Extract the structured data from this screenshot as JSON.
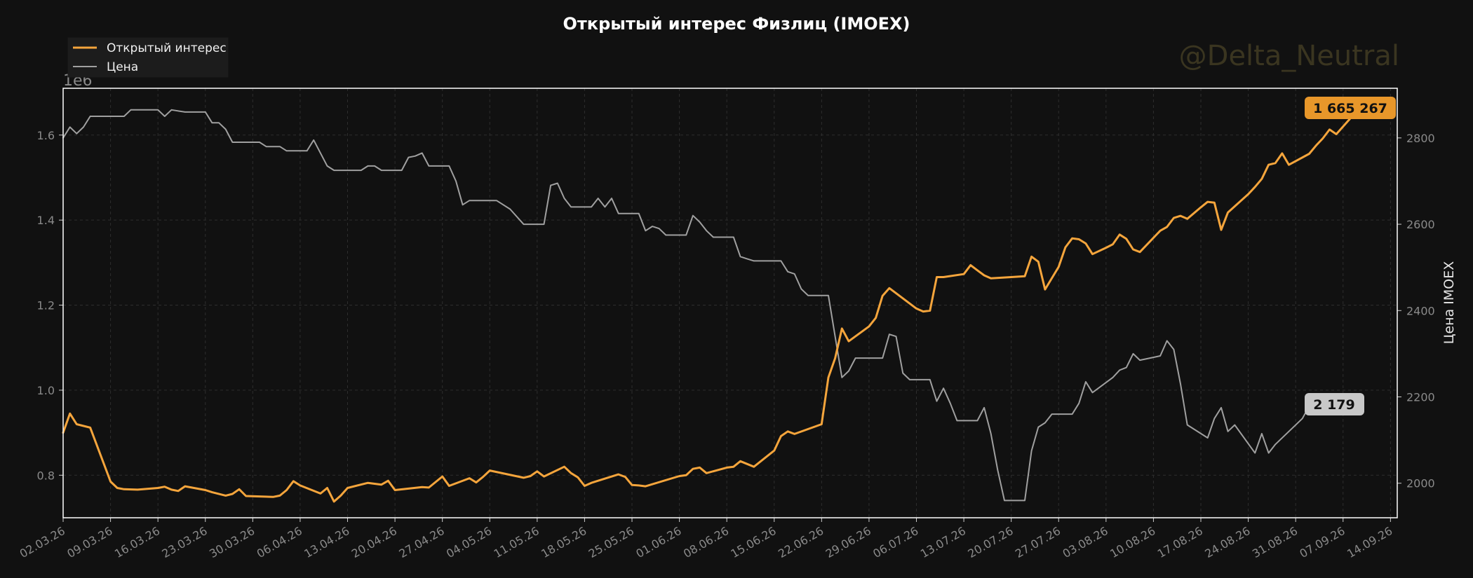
{
  "chart_data": {
    "type": "line",
    "title": "Открытый интерес Физлиц (IMOEX)",
    "left_axis_multiplier": "1e6",
    "ylabel_right": "Цена IMOEX",
    "watermark": "@Delta_Neutral",
    "legend": {
      "placement": "top-left",
      "items": [
        "Открытый интерес",
        "Цена"
      ]
    },
    "x_ticks": [
      "02.03.26",
      "09.03.26",
      "16.03.26",
      "23.03.26",
      "30.03.26",
      "06.04.26",
      "13.04.26",
      "20.04.26",
      "27.04.26",
      "04.05.26",
      "11.05.26",
      "18.05.26",
      "25.05.26",
      "01.06.26",
      "08.06.26",
      "15.06.26",
      "22.06.26",
      "29.06.26",
      "06.07.26",
      "13.07.26",
      "20.07.26",
      "27.07.26",
      "03.08.26",
      "10.08.26",
      "17.08.26",
      "24.08.26",
      "31.08.26",
      "07.09.26",
      "14.09.26"
    ],
    "y_left_ticks": [
      "0.8",
      "1.0",
      "1.2",
      "1.4",
      "1.6"
    ],
    "y_left_range": [
      0.7,
      1.71
    ],
    "y_right_ticks": [
      "2000",
      "2200",
      "2400",
      "2600",
      "2800"
    ],
    "y_right_range": [
      1920,
      2915
    ],
    "x_range_days": [
      0,
      197
    ],
    "grid": true,
    "series": [
      {
        "name": "Открытый интерес",
        "axis": "left",
        "color": "#f5a53c",
        "last_label": "1 665 267",
        "points": [
          [
            "02.03.26",
            0.9
          ],
          [
            "03.03.26",
            0.945
          ],
          [
            "04.03.26",
            0.92
          ],
          [
            "06.03.26",
            0.912
          ],
          [
            "09.03.26",
            0.785
          ],
          [
            "10.03.26",
            0.77
          ],
          [
            "11.03.26",
            0.767
          ],
          [
            "13.03.26",
            0.766
          ],
          [
            "16.03.26",
            0.77
          ],
          [
            "17.03.26",
            0.773
          ],
          [
            "18.03.26",
            0.766
          ],
          [
            "19.03.26",
            0.763
          ],
          [
            "20.03.26",
            0.774
          ],
          [
            "23.03.26",
            0.765
          ],
          [
            "24.03.26",
            0.76
          ],
          [
            "26.03.26",
            0.752
          ],
          [
            "27.03.26",
            0.756
          ],
          [
            "28.03.26",
            0.767
          ],
          [
            "29.03.26",
            0.751
          ],
          [
            "02.04.26",
            0.749
          ],
          [
            "03.04.26",
            0.752
          ],
          [
            "04.04.26",
            0.765
          ],
          [
            "05.04.26",
            0.786
          ],
          [
            "06.04.26",
            0.776
          ],
          [
            "09.04.26",
            0.757
          ],
          [
            "10.04.26",
            0.77
          ],
          [
            "11.04.26",
            0.738
          ],
          [
            "12.04.26",
            0.752
          ],
          [
            "13.04.26",
            0.77
          ],
          [
            "16.04.26",
            0.782
          ],
          [
            "18.04.26",
            0.778
          ],
          [
            "19.04.26",
            0.787
          ],
          [
            "20.04.26",
            0.765
          ],
          [
            "24.04.26",
            0.772
          ],
          [
            "25.04.26",
            0.771
          ],
          [
            "27.04.26",
            0.797
          ],
          [
            "28.04.26",
            0.775
          ],
          [
            "01.05.26",
            0.793
          ],
          [
            "02.05.26",
            0.783
          ],
          [
            "03.05.26",
            0.796
          ],
          [
            "04.05.26",
            0.811
          ],
          [
            "09.05.26",
            0.794
          ],
          [
            "10.05.26",
            0.798
          ],
          [
            "11.05.26",
            0.809
          ],
          [
            "12.05.26",
            0.797
          ],
          [
            "15.05.26",
            0.82
          ],
          [
            "16.05.26",
            0.805
          ],
          [
            "17.05.26",
            0.795
          ],
          [
            "18.05.26",
            0.775
          ],
          [
            "19.05.26",
            0.782
          ],
          [
            "23.05.26",
            0.802
          ],
          [
            "24.05.26",
            0.796
          ],
          [
            "25.05.26",
            0.777
          ],
          [
            "26.05.26",
            0.776
          ],
          [
            "27.05.26",
            0.774
          ],
          [
            "01.06.26",
            0.798
          ],
          [
            "02.06.26",
            0.8
          ],
          [
            "03.06.26",
            0.815
          ],
          [
            "04.06.26",
            0.818
          ],
          [
            "05.06.26",
            0.805
          ],
          [
            "08.06.26",
            0.818
          ],
          [
            "09.06.26",
            0.82
          ],
          [
            "10.06.26",
            0.833
          ],
          [
            "12.06.26",
            0.82
          ],
          [
            "15.06.26",
            0.858
          ],
          [
            "16.06.26",
            0.892
          ],
          [
            "17.06.26",
            0.903
          ],
          [
            "18.06.26",
            0.897
          ],
          [
            "22.06.26",
            0.92
          ],
          [
            "23.06.26",
            1.03
          ],
          [
            "24.06.26",
            1.075
          ],
          [
            "25.06.26",
            1.145
          ],
          [
            "26.06.26",
            1.115
          ],
          [
            "29.06.26",
            1.15
          ],
          [
            "30.06.26",
            1.17
          ],
          [
            "01.07.26",
            1.222
          ],
          [
            "02.07.26",
            1.24
          ],
          [
            "06.07.26",
            1.192
          ],
          [
            "07.07.26",
            1.185
          ],
          [
            "08.07.26",
            1.187
          ],
          [
            "09.07.26",
            1.266
          ],
          [
            "10.07.26",
            1.266
          ],
          [
            "13.07.26",
            1.273
          ],
          [
            "14.07.26",
            1.294
          ],
          [
            "15.07.26",
            1.282
          ],
          [
            "16.07.26",
            1.27
          ],
          [
            "17.07.26",
            1.263
          ],
          [
            "20.07.26",
            1.266
          ],
          [
            "22.07.26",
            1.268
          ],
          [
            "23.07.26",
            1.314
          ],
          [
            "24.07.26",
            1.302
          ],
          [
            "25.07.26",
            1.237
          ],
          [
            "27.07.26",
            1.29
          ],
          [
            "28.07.26",
            1.336
          ],
          [
            "29.07.26",
            1.357
          ],
          [
            "30.07.26",
            1.355
          ],
          [
            "31.07.26",
            1.345
          ],
          [
            "01.08.26",
            1.32
          ],
          [
            "03.08.26",
            1.335
          ],
          [
            "04.08.26",
            1.343
          ],
          [
            "05.08.26",
            1.366
          ],
          [
            "06.08.26",
            1.356
          ],
          [
            "07.08.26",
            1.331
          ],
          [
            "08.08.26",
            1.325
          ],
          [
            "11.08.26",
            1.375
          ],
          [
            "12.08.26",
            1.384
          ],
          [
            "13.08.26",
            1.405
          ],
          [
            "14.08.26",
            1.41
          ],
          [
            "15.08.26",
            1.403
          ],
          [
            "17.08.26",
            1.43
          ],
          [
            "18.08.26",
            1.443
          ],
          [
            "19.08.26",
            1.441
          ],
          [
            "20.08.26",
            1.377
          ],
          [
            "21.08.26",
            1.418
          ],
          [
            "24.08.26",
            1.461
          ],
          [
            "25.08.26",
            1.478
          ],
          [
            "26.08.26",
            1.497
          ],
          [
            "27.08.26",
            1.53
          ],
          [
            "28.08.26",
            1.534
          ],
          [
            "29.08.26",
            1.557
          ],
          [
            "30.08.26",
            1.53
          ],
          [
            "02.09.26",
            1.556
          ],
          [
            "03.09.26",
            1.575
          ],
          [
            "04.09.26",
            1.592
          ],
          [
            "05.09.26",
            1.613
          ],
          [
            "06.09.26",
            1.602
          ],
          [
            "08.09.26",
            1.638
          ],
          [
            "09.09.26",
            1.665
          ]
        ]
      },
      {
        "name": "Цена",
        "axis": "right",
        "color": "#a0a0a0",
        "last_label": "2 179",
        "points": [
          [
            "02.03.26",
            2800
          ],
          [
            "03.03.26",
            2825
          ],
          [
            "04.03.26",
            2810
          ],
          [
            "05.03.26",
            2825
          ],
          [
            "06.03.26",
            2850
          ],
          [
            "09.03.26",
            2850
          ],
          [
            "11.03.26",
            2850
          ],
          [
            "12.03.26",
            2865
          ],
          [
            "16.03.26",
            2865
          ],
          [
            "17.03.26",
            2850
          ],
          [
            "18.03.26",
            2865
          ],
          [
            "20.03.26",
            2860
          ],
          [
            "23.03.26",
            2860
          ],
          [
            "24.03.26",
            2835
          ],
          [
            "25.03.26",
            2835
          ],
          [
            "26.03.26",
            2820
          ],
          [
            "27.03.26",
            2790
          ],
          [
            "30.03.26",
            2790
          ],
          [
            "31.03.26",
            2790
          ],
          [
            "01.04.26",
            2780
          ],
          [
            "03.04.26",
            2780
          ],
          [
            "04.04.26",
            2770
          ],
          [
            "07.04.26",
            2770
          ],
          [
            "08.04.26",
            2795
          ],
          [
            "10.04.26",
            2735
          ],
          [
            "11.04.26",
            2725
          ],
          [
            "13.04.26",
            2725
          ],
          [
            "15.04.26",
            2725
          ],
          [
            "16.04.26",
            2735
          ],
          [
            "17.04.26",
            2735
          ],
          [
            "18.04.26",
            2725
          ],
          [
            "21.04.26",
            2725
          ],
          [
            "22.04.26",
            2755
          ],
          [
            "23.04.26",
            2758
          ],
          [
            "24.04.26",
            2765
          ],
          [
            "25.04.26",
            2735
          ],
          [
            "28.04.26",
            2735
          ],
          [
            "29.04.26",
            2700
          ],
          [
            "30.04.26",
            2645
          ],
          [
            "01.05.26",
            2655
          ],
          [
            "04.05.26",
            2655
          ],
          [
            "05.05.26",
            2655
          ],
          [
            "07.05.26",
            2635
          ],
          [
            "09.05.26",
            2600
          ],
          [
            "12.05.26",
            2600
          ],
          [
            "13.05.26",
            2690
          ],
          [
            "14.05.26",
            2695
          ],
          [
            "15.05.26",
            2660
          ],
          [
            "16.05.26",
            2640
          ],
          [
            "19.05.26",
            2640
          ],
          [
            "20.05.26",
            2660
          ],
          [
            "21.05.26",
            2640
          ],
          [
            "22.05.26",
            2660
          ],
          [
            "23.05.26",
            2625
          ],
          [
            "26.05.26",
            2625
          ],
          [
            "27.05.26",
            2585
          ],
          [
            "28.05.26",
            2595
          ],
          [
            "29.05.26",
            2590
          ],
          [
            "30.05.26",
            2575
          ],
          [
            "02.06.26",
            2575
          ],
          [
            "03.06.26",
            2620
          ],
          [
            "04.06.26",
            2605
          ],
          [
            "05.06.26",
            2585
          ],
          [
            "06.06.26",
            2570
          ],
          [
            "09.06.26",
            2570
          ],
          [
            "10.06.26",
            2525
          ],
          [
            "11.06.26",
            2520
          ],
          [
            "12.06.26",
            2515
          ],
          [
            "16.06.26",
            2515
          ],
          [
            "17.06.26",
            2490
          ],
          [
            "18.06.26",
            2485
          ],
          [
            "19.06.26",
            2450
          ],
          [
            "20.06.26",
            2435
          ],
          [
            "23.06.26",
            2435
          ],
          [
            "24.06.26",
            2340
          ],
          [
            "25.06.26",
            2245
          ],
          [
            "26.06.26",
            2260
          ],
          [
            "27.06.26",
            2290
          ],
          [
            "30.06.26",
            2290
          ],
          [
            "01.07.26",
            2290
          ],
          [
            "02.07.26",
            2345
          ],
          [
            "03.07.26",
            2340
          ],
          [
            "04.07.26",
            2255
          ],
          [
            "05.07.26",
            2240
          ],
          [
            "08.07.26",
            2240
          ],
          [
            "09.07.26",
            2190
          ],
          [
            "10.07.26",
            2220
          ],
          [
            "11.07.26",
            2185
          ],
          [
            "12.07.26",
            2145
          ],
          [
            "15.07.26",
            2145
          ],
          [
            "16.07.26",
            2175
          ],
          [
            "17.07.26",
            2115
          ],
          [
            "18.07.26",
            2030
          ],
          [
            "19.07.26",
            1960
          ],
          [
            "22.07.26",
            1960
          ],
          [
            "23.07.26",
            2075
          ],
          [
            "24.07.26",
            2130
          ],
          [
            "25.07.26",
            2140
          ],
          [
            "26.07.26",
            2160
          ],
          [
            "29.07.26",
            2160
          ],
          [
            "30.07.26",
            2185
          ],
          [
            "31.07.26",
            2235
          ],
          [
            "01.08.26",
            2210
          ],
          [
            "04.08.26",
            2245
          ],
          [
            "05.08.26",
            2262
          ],
          [
            "06.08.26",
            2268
          ],
          [
            "07.08.26",
            2300
          ],
          [
            "08.08.26",
            2285
          ],
          [
            "11.08.26",
            2295
          ],
          [
            "12.08.26",
            2330
          ],
          [
            "13.08.26",
            2310
          ],
          [
            "14.08.26",
            2230
          ],
          [
            "15.08.26",
            2135
          ],
          [
            "18.08.26",
            2105
          ],
          [
            "19.08.26",
            2150
          ],
          [
            "20.08.26",
            2175
          ],
          [
            "21.08.26",
            2120
          ],
          [
            "22.08.26",
            2135
          ],
          [
            "25.08.26",
            2070
          ],
          [
            "26.08.26",
            2115
          ],
          [
            "27.08.26",
            2070
          ],
          [
            "28.08.26",
            2090
          ],
          [
            "01.09.26",
            2150
          ],
          [
            "02.09.26",
            2179
          ]
        ]
      }
    ]
  }
}
